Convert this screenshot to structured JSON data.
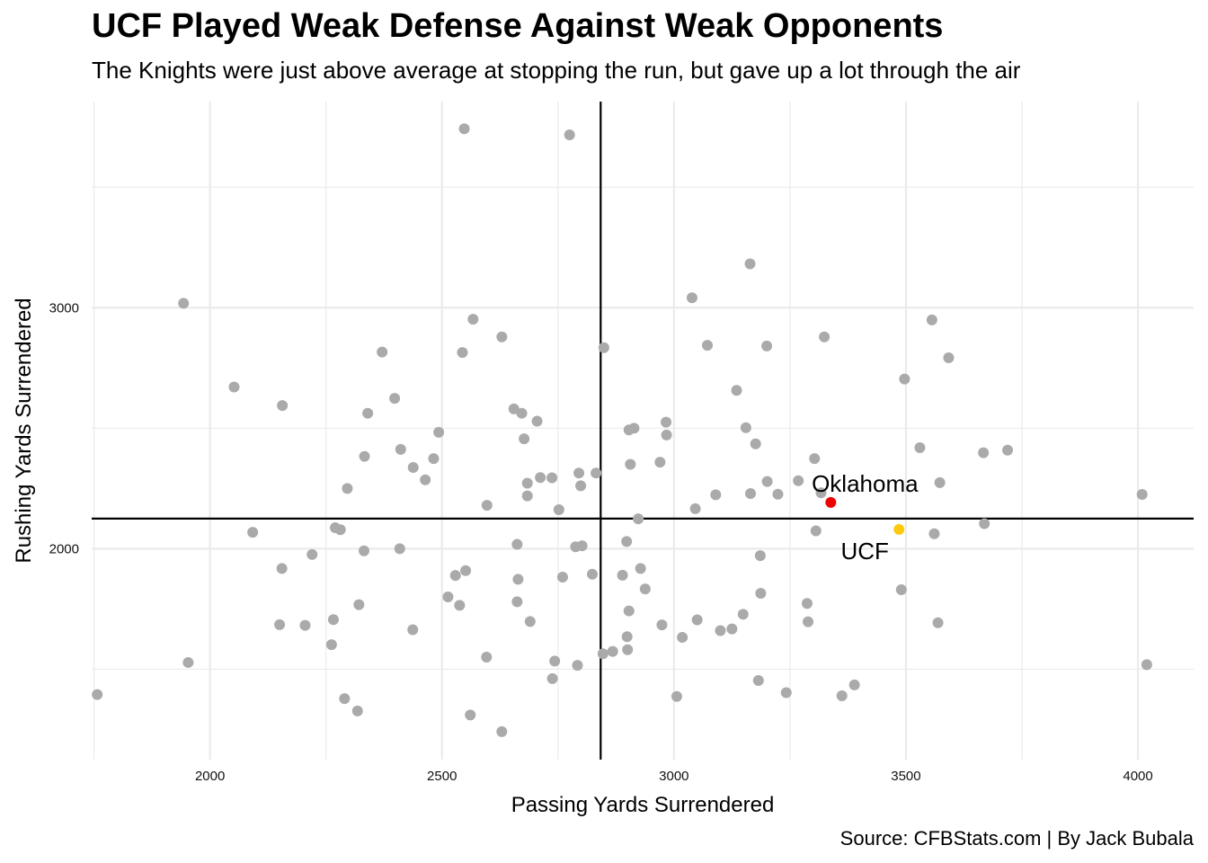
{
  "chart_data": {
    "type": "scatter",
    "title": "UCF Played Weak Defense Against Weak Opponents",
    "subtitle": "The Knights were just above average at stopping the run, but gave up a lot through the air",
    "caption": "Source: CFBStats.com | By Jack Bubala",
    "xlabel": "Passing Yards Surrendered",
    "ylabel": "Rushing Yards Surrendered",
    "xlim": [
      1745,
      4120
    ],
    "ylim": [
      1125,
      3855
    ],
    "xticks": [
      2000,
      2500,
      3000,
      3500,
      4000
    ],
    "yticks": [
      2000,
      3000
    ],
    "x_minor_grid": [
      1750,
      2250,
      2750,
      3250,
      3750
    ],
    "y_minor_grid": [
      1500,
      2500,
      3500
    ],
    "reference_lines": {
      "x": 2842,
      "y": 2125
    },
    "grid": true,
    "colors": {
      "points": "#aaaaaa",
      "ucf": "#ffc90e",
      "oklahoma": "#ee0000",
      "grid": "#ebebeb",
      "reference": "#000000"
    },
    "highlights": [
      {
        "label": "Oklahoma",
        "x": 3338,
        "y": 2192
      },
      {
        "label": "UCF",
        "x": 3485,
        "y": 2080
      }
    ],
    "points": [
      [
        1757,
        1395
      ],
      [
        1943,
        3018
      ],
      [
        1953,
        1528
      ],
      [
        2052,
        2671
      ],
      [
        2092,
        2068
      ],
      [
        2150,
        1685
      ],
      [
        2155,
        1918
      ],
      [
        2156,
        2594
      ],
      [
        2205,
        1682
      ],
      [
        2220,
        1976
      ],
      [
        2262,
        1602
      ],
      [
        2266,
        1706
      ],
      [
        2270,
        2087
      ],
      [
        2281,
        2079
      ],
      [
        2290,
        1378
      ],
      [
        2296,
        2250
      ],
      [
        2318,
        1327
      ],
      [
        2321,
        1768
      ],
      [
        2332,
        1991
      ],
      [
        2333,
        2383
      ],
      [
        2340,
        2562
      ],
      [
        2371,
        2816
      ],
      [
        2398,
        2624
      ],
      [
        2409,
        2000
      ],
      [
        2411,
        2412
      ],
      [
        2437,
        1664
      ],
      [
        2438,
        2337
      ],
      [
        2464,
        2286
      ],
      [
        2482,
        2374
      ],
      [
        2493,
        2483
      ],
      [
        2513,
        1800
      ],
      [
        2529,
        1889
      ],
      [
        2538,
        1765
      ],
      [
        2544,
        2814
      ],
      [
        2548,
        3742
      ],
      [
        2551,
        1909
      ],
      [
        2561,
        1310
      ],
      [
        2567,
        2952
      ],
      [
        2596,
        1550
      ],
      [
        2597,
        2180
      ],
      [
        2629,
        2879
      ],
      [
        2629,
        1241
      ],
      [
        2655,
        2580
      ],
      [
        2662,
        2018
      ],
      [
        2662,
        1780
      ],
      [
        2664,
        1873
      ],
      [
        2672,
        2562
      ],
      [
        2677,
        2456
      ],
      [
        2684,
        2272
      ],
      [
        2684,
        2219
      ],
      [
        2690,
        1698
      ],
      [
        2705,
        2529
      ],
      [
        2712,
        2295
      ],
      [
        2737,
        2294
      ],
      [
        2738,
        1461
      ],
      [
        2743,
        1534
      ],
      [
        2752,
        2162
      ],
      [
        2760,
        1882
      ],
      [
        2775,
        3717
      ],
      [
        2788,
        2008
      ],
      [
        2792,
        1516
      ],
      [
        2795,
        2314
      ],
      [
        2799,
        2261
      ],
      [
        2802,
        2012
      ],
      [
        2824,
        1894
      ],
      [
        2832,
        2314
      ],
      [
        2847,
        1564
      ],
      [
        2849,
        2834
      ],
      [
        2868,
        1574
      ],
      [
        2889,
        1890
      ],
      [
        2898,
        2030
      ],
      [
        2899,
        1635
      ],
      [
        2900,
        1581
      ],
      [
        2903,
        2493
      ],
      [
        2903,
        1742
      ],
      [
        2906,
        2350
      ],
      [
        2914,
        2500
      ],
      [
        2923,
        2124
      ],
      [
        2928,
        1918
      ],
      [
        2938,
        1833
      ],
      [
        2970,
        2359
      ],
      [
        2974,
        1684
      ],
      [
        2983,
        2525
      ],
      [
        2984,
        2472
      ],
      [
        3006,
        1387
      ],
      [
        3018,
        1632
      ],
      [
        3039,
        3041
      ],
      [
        3046,
        2166
      ],
      [
        3050,
        1705
      ],
      [
        3072,
        2844
      ],
      [
        3090,
        2224
      ],
      [
        3100,
        1660
      ],
      [
        3125,
        1667
      ],
      [
        3135,
        2657
      ],
      [
        3149,
        1728
      ],
      [
        3155,
        2502
      ],
      [
        3164,
        3182
      ],
      [
        3165,
        2229
      ],
      [
        3176,
        2435
      ],
      [
        3186,
        1971
      ],
      [
        3187,
        1815
      ],
      [
        3200,
        2841
      ],
      [
        3201,
        2279
      ],
      [
        3224,
        2226
      ],
      [
        3242,
        1403
      ],
      [
        3268,
        2282
      ],
      [
        3287,
        1773
      ],
      [
        3289,
        1697
      ],
      [
        3303,
        2374
      ],
      [
        3306,
        2074
      ],
      [
        3317,
        2232
      ],
      [
        3324,
        2879
      ],
      [
        3362,
        1390
      ],
      [
        3389,
        1435
      ],
      [
        3490,
        1830
      ],
      [
        3497,
        2704
      ],
      [
        3530,
        2419
      ],
      [
        3556,
        2949
      ],
      [
        3561,
        2062
      ],
      [
        3569,
        1693
      ],
      [
        3573,
        2274
      ],
      [
        3592,
        2792
      ],
      [
        3667,
        2398
      ],
      [
        3669,
        2104
      ],
      [
        3719,
        2409
      ],
      [
        4009,
        2225
      ],
      [
        4019,
        1519
      ],
      [
        3182,
        1453
      ]
    ]
  }
}
